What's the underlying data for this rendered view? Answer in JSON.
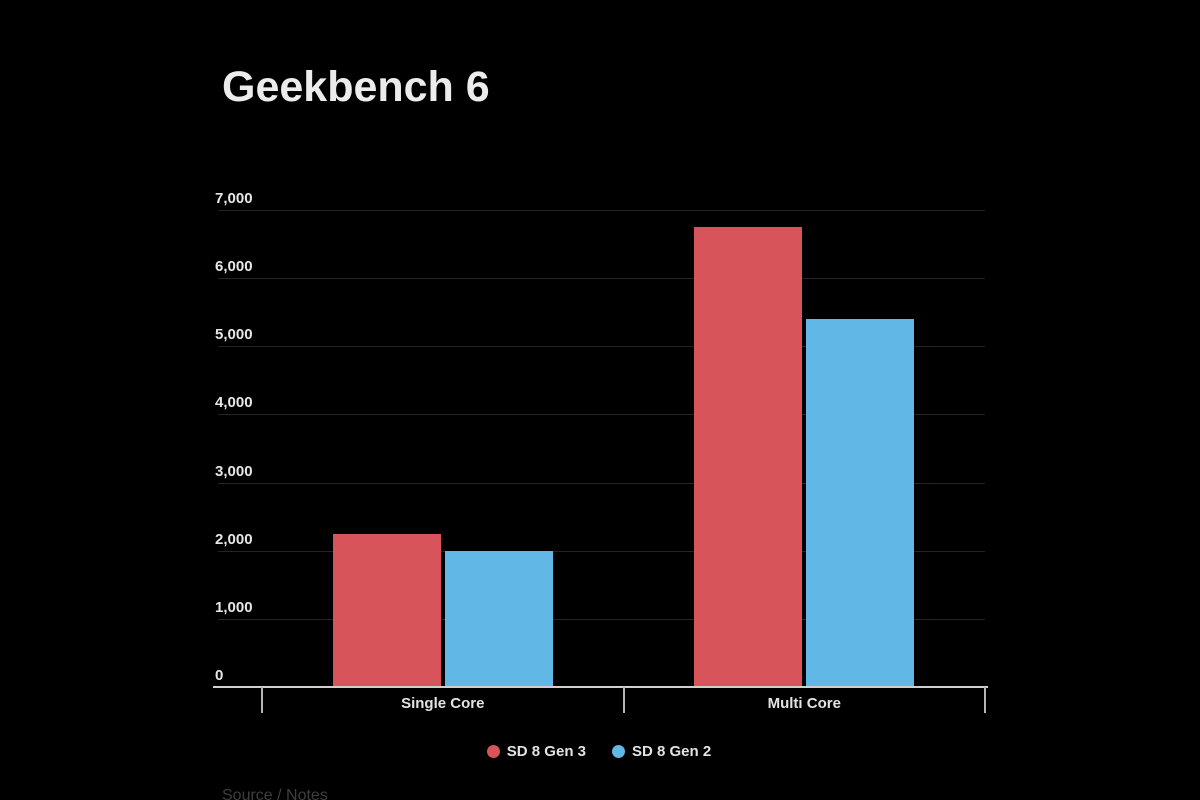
{
  "page": {
    "background": "#000000"
  },
  "chart": {
    "title": "Geekbench 6",
    "source_note": "Source / Notes"
  },
  "chart_data": {
    "type": "bar",
    "title": "Geekbench 6",
    "categories": [
      "Single Core",
      "Multi Core"
    ],
    "series": [
      {
        "name": "SD 8 Gen 3",
        "color": "#d7545a",
        "values": [
          2250,
          6750
        ]
      },
      {
        "name": "SD 8 Gen 2",
        "color": "#61b7e6",
        "values": [
          2000,
          5400
        ]
      }
    ],
    "xlabel": "",
    "ylabel": "",
    "ylim": [
      0,
      7000
    ],
    "ytick_interval": 1000,
    "ytick_labels": [
      "0",
      "1,000",
      "2,000",
      "3,000",
      "4,000",
      "5,000",
      "6,000",
      "7,000"
    ],
    "grid": true,
    "legend_position": "bottom",
    "source_note": "Source / Notes",
    "colors": {
      "text": "#e6e6e6",
      "grid": "#242424",
      "axis": "#cfcfcf",
      "tick": "#b5b5b5",
      "muted": "#3e3e3e",
      "background": "#000000"
    }
  }
}
